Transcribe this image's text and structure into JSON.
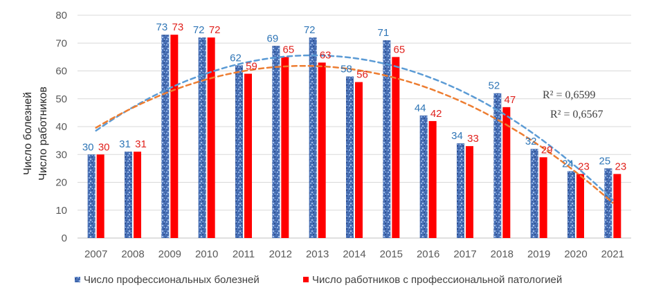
{
  "chart_data": {
    "type": "bar",
    "title": "",
    "xlabel": "",
    "ylabel_lines": [
      "Число болезней",
      "Число работников"
    ],
    "ylim": [
      0,
      80
    ],
    "yticks": [
      0,
      10,
      20,
      30,
      40,
      50,
      60,
      70,
      80
    ],
    "grid": true,
    "legend_position": "bottom",
    "categories": [
      "2007",
      "2008",
      "2009",
      "2010",
      "2011",
      "2012",
      "2013",
      "2014",
      "2015",
      "2016",
      "2017",
      "2018",
      "2019",
      "2020",
      "2021"
    ],
    "series": [
      {
        "name": "Число профессиональных болезней",
        "color": "#4a72b8",
        "label_color": "#2e75b6",
        "values": [
          30,
          31,
          73,
          72,
          62,
          69,
          72,
          58,
          71,
          44,
          34,
          52,
          32,
          24,
          25
        ]
      },
      {
        "name": "Число работников с профессиональной патологией",
        "color": "#ff0000",
        "label_color": "#e0201b",
        "values": [
          30,
          31,
          73,
          72,
          59,
          65,
          63,
          56,
          65,
          42,
          33,
          47,
          29,
          23,
          23
        ]
      }
    ],
    "trendlines": [
      {
        "series": 0,
        "type": "polynomial-2",
        "color": "#5b9bd5",
        "r2_label": "R² = 0,6599"
      },
      {
        "series": 1,
        "type": "polynomial-2",
        "color": "#ed7d31",
        "r2_label": "R² = 0,6567"
      }
    ]
  }
}
